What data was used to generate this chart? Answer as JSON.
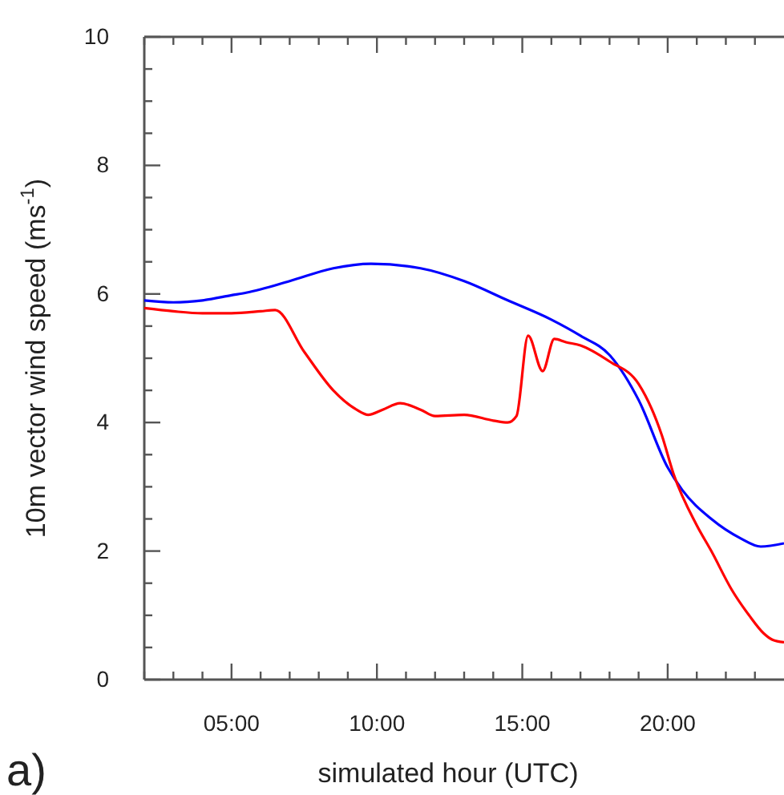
{
  "chart_data": {
    "type": "line",
    "xlabel": "simulated hour (UTC)",
    "ylabel": "10m vector wind speed (ms$^{-1}$)",
    "annotations": [
      "a)"
    ],
    "xlim": [
      2,
      24
    ],
    "ylim": [
      0,
      10
    ],
    "xticks": [
      {
        "value": 2,
        "label": null
      },
      {
        "value": 3,
        "label": null
      },
      {
        "value": 4,
        "label": null
      },
      {
        "value": 5,
        "label": "05:00"
      },
      {
        "value": 6,
        "label": null
      },
      {
        "value": 7,
        "label": null
      },
      {
        "value": 8,
        "label": null
      },
      {
        "value": 9,
        "label": null
      },
      {
        "value": 10,
        "label": "10:00"
      },
      {
        "value": 11,
        "label": null
      },
      {
        "value": 12,
        "label": null
      },
      {
        "value": 13,
        "label": null
      },
      {
        "value": 14,
        "label": null
      },
      {
        "value": 15,
        "label": "15:00"
      },
      {
        "value": 16,
        "label": null
      },
      {
        "value": 17,
        "label": null
      },
      {
        "value": 18,
        "label": null
      },
      {
        "value": 19,
        "label": null
      },
      {
        "value": 20,
        "label": "20:00"
      },
      {
        "value": 21,
        "label": null
      },
      {
        "value": 22,
        "label": null
      },
      {
        "value": 23,
        "label": null
      }
    ],
    "yticks": [
      0,
      {
        "value": 0.5,
        "label": null
      },
      {
        "value": 1,
        "label": null
      },
      {
        "value": 1.5,
        "label": null
      },
      2,
      {
        "value": 2.5,
        "label": null
      },
      {
        "value": 3,
        "label": null
      },
      {
        "value": 3.5,
        "label": null
      },
      4,
      {
        "value": 4.5,
        "label": null
      },
      {
        "value": 5,
        "label": null
      },
      {
        "value": 5.5,
        "label": null
      },
      6,
      {
        "value": 6.5,
        "label": null
      },
      {
        "value": 7,
        "label": null
      },
      {
        "value": 7.5,
        "label": null
      },
      8,
      {
        "value": 8.5,
        "label": null
      },
      {
        "value": 9,
        "label": null
      },
      {
        "value": 9.5,
        "label": null
      },
      10
    ],
    "grid": false,
    "series": [
      {
        "color": "#0000ff",
        "x": [
          2,
          3,
          4,
          5,
          5.5,
          7,
          8.5,
          9.8,
          11.5,
          13,
          14.5,
          16,
          17,
          18,
          19,
          20,
          20.5,
          21.5,
          22.5,
          23.2,
          24
        ],
        "values": [
          5.9,
          5.87,
          5.9,
          5.98,
          6.02,
          6.2,
          6.4,
          6.47,
          6.4,
          6.2,
          5.9,
          5.6,
          5.35,
          5.05,
          4.35,
          3.3,
          2.95,
          2.5,
          2.2,
          2.07,
          2.12
        ]
      },
      {
        "color": "#ff0000",
        "x": [
          2,
          3,
          4,
          5,
          6,
          6.5,
          7.5,
          8.5,
          9.3,
          9.7,
          10.2,
          10.8,
          11.5,
          12,
          13,
          14,
          14.5,
          14.8,
          15.2,
          15.7,
          16.1,
          16.5,
          17,
          18,
          19,
          19.8,
          20.2,
          21,
          21.5,
          22.2,
          22.8,
          23.3,
          23.6,
          24
        ],
        "values": [
          5.78,
          5.73,
          5.7,
          5.7,
          5.73,
          5.75,
          5.1,
          4.5,
          4.2,
          4.12,
          4.2,
          4.3,
          4.2,
          4.1,
          4.12,
          4.03,
          4.0,
          4.1,
          5.35,
          4.8,
          5.3,
          5.25,
          5.2,
          4.95,
          4.6,
          3.8,
          3.2,
          2.4,
          2.0,
          1.4,
          1.0,
          0.72,
          0.62,
          0.58
        ]
      }
    ]
  }
}
